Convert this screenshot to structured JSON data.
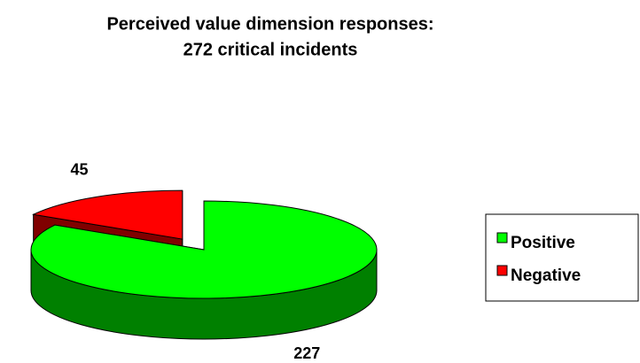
{
  "chart_data": {
    "type": "pie",
    "title": [
      "Perceived value dimension responses:",
      "272 critical incidents"
    ],
    "categories": [
      "Positive",
      "Negative"
    ],
    "values": [
      227,
      45
    ],
    "colors": [
      "#00ff00",
      "#ff0000"
    ],
    "explode": [
      0,
      0.25
    ],
    "legend": "right"
  }
}
